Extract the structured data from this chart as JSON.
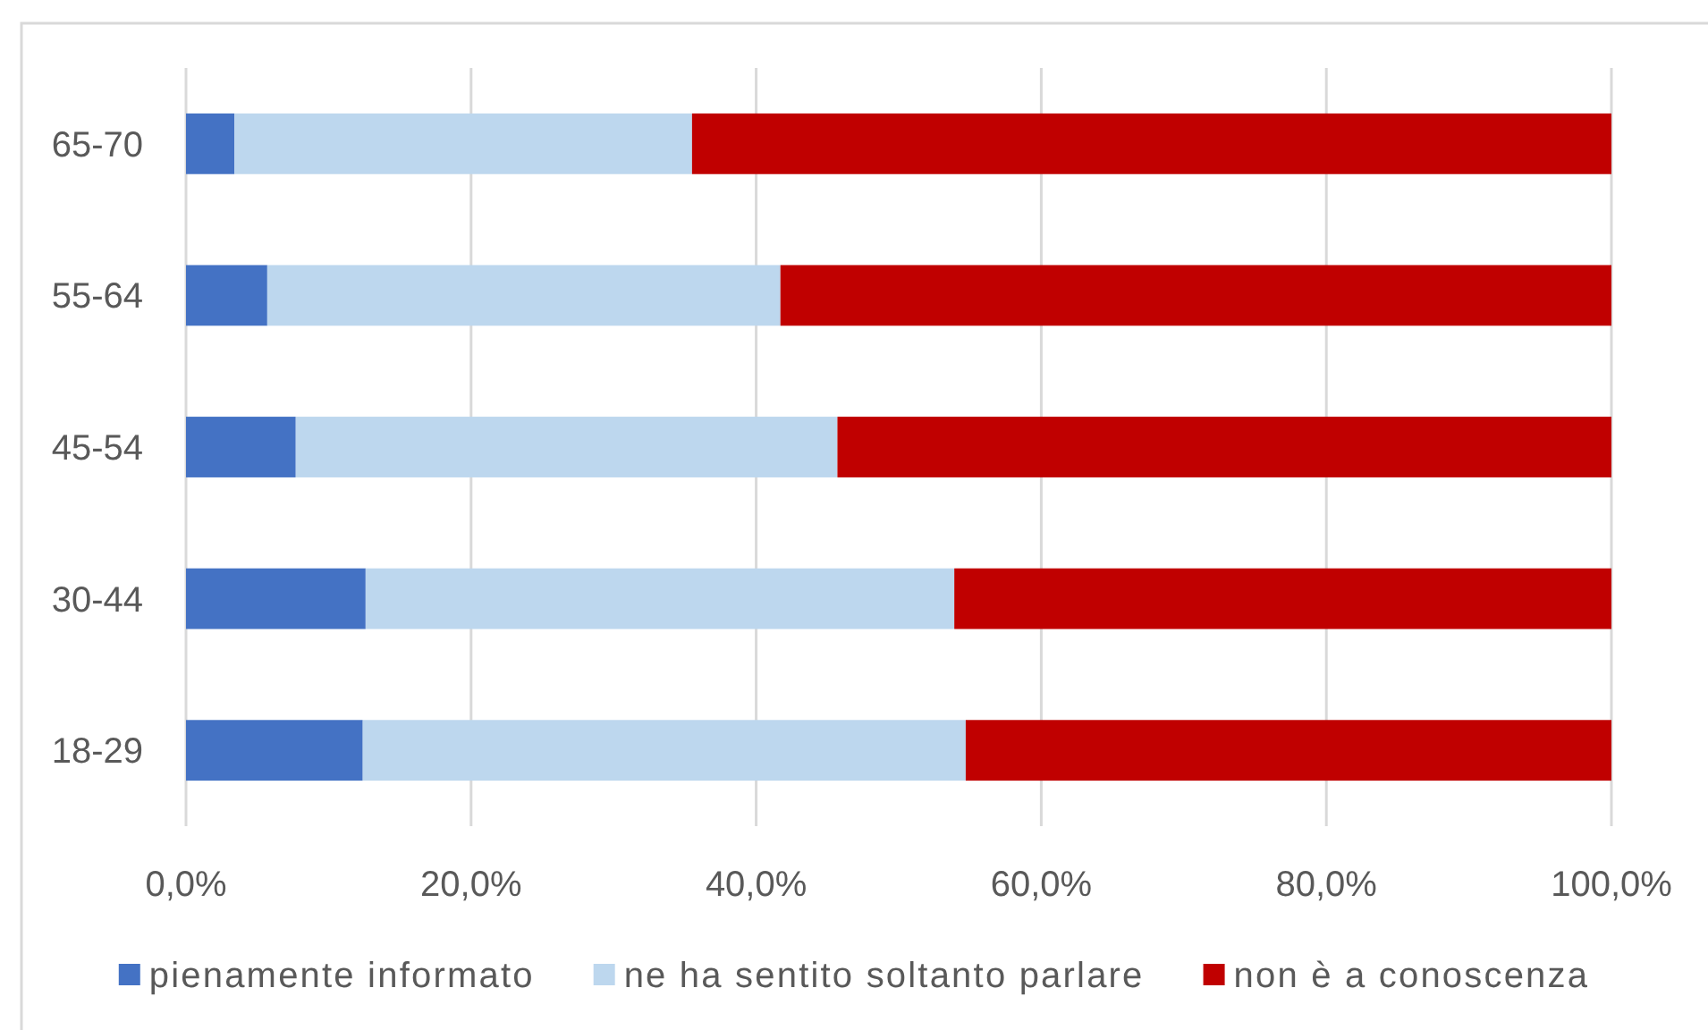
{
  "chart_data": {
    "type": "bar",
    "orientation": "horizontal",
    "stacked": true,
    "categories": [
      "65-70",
      "55-64",
      "45-54",
      "30-44",
      "18-29"
    ],
    "series": [
      {
        "name": "pienamente informato",
        "color": "#4472c4",
        "values": [
          3.4,
          5.7,
          7.7,
          12.6,
          12.4
        ]
      },
      {
        "name": "ne ha sentito soltanto parlare",
        "color": "#bdd7ee",
        "values": [
          32.1,
          36.0,
          38.0,
          41.3,
          42.3
        ]
      },
      {
        "name": "non è a conoscenza",
        "color": "#c00000",
        "values": [
          64.5,
          58.3,
          54.3,
          46.1,
          45.3
        ]
      }
    ],
    "xlim": [
      0,
      100
    ],
    "xticks": [
      {
        "value": 0,
        "label": "0,0%"
      },
      {
        "value": 20,
        "label": "20,0%"
      },
      {
        "value": 40,
        "label": "40,0%"
      },
      {
        "value": 60,
        "label": "60,0%"
      },
      {
        "value": 80,
        "label": "80,0%"
      },
      {
        "value": 100,
        "label": "100,0%"
      }
    ],
    "grid": "x",
    "legend": "bottom"
  }
}
